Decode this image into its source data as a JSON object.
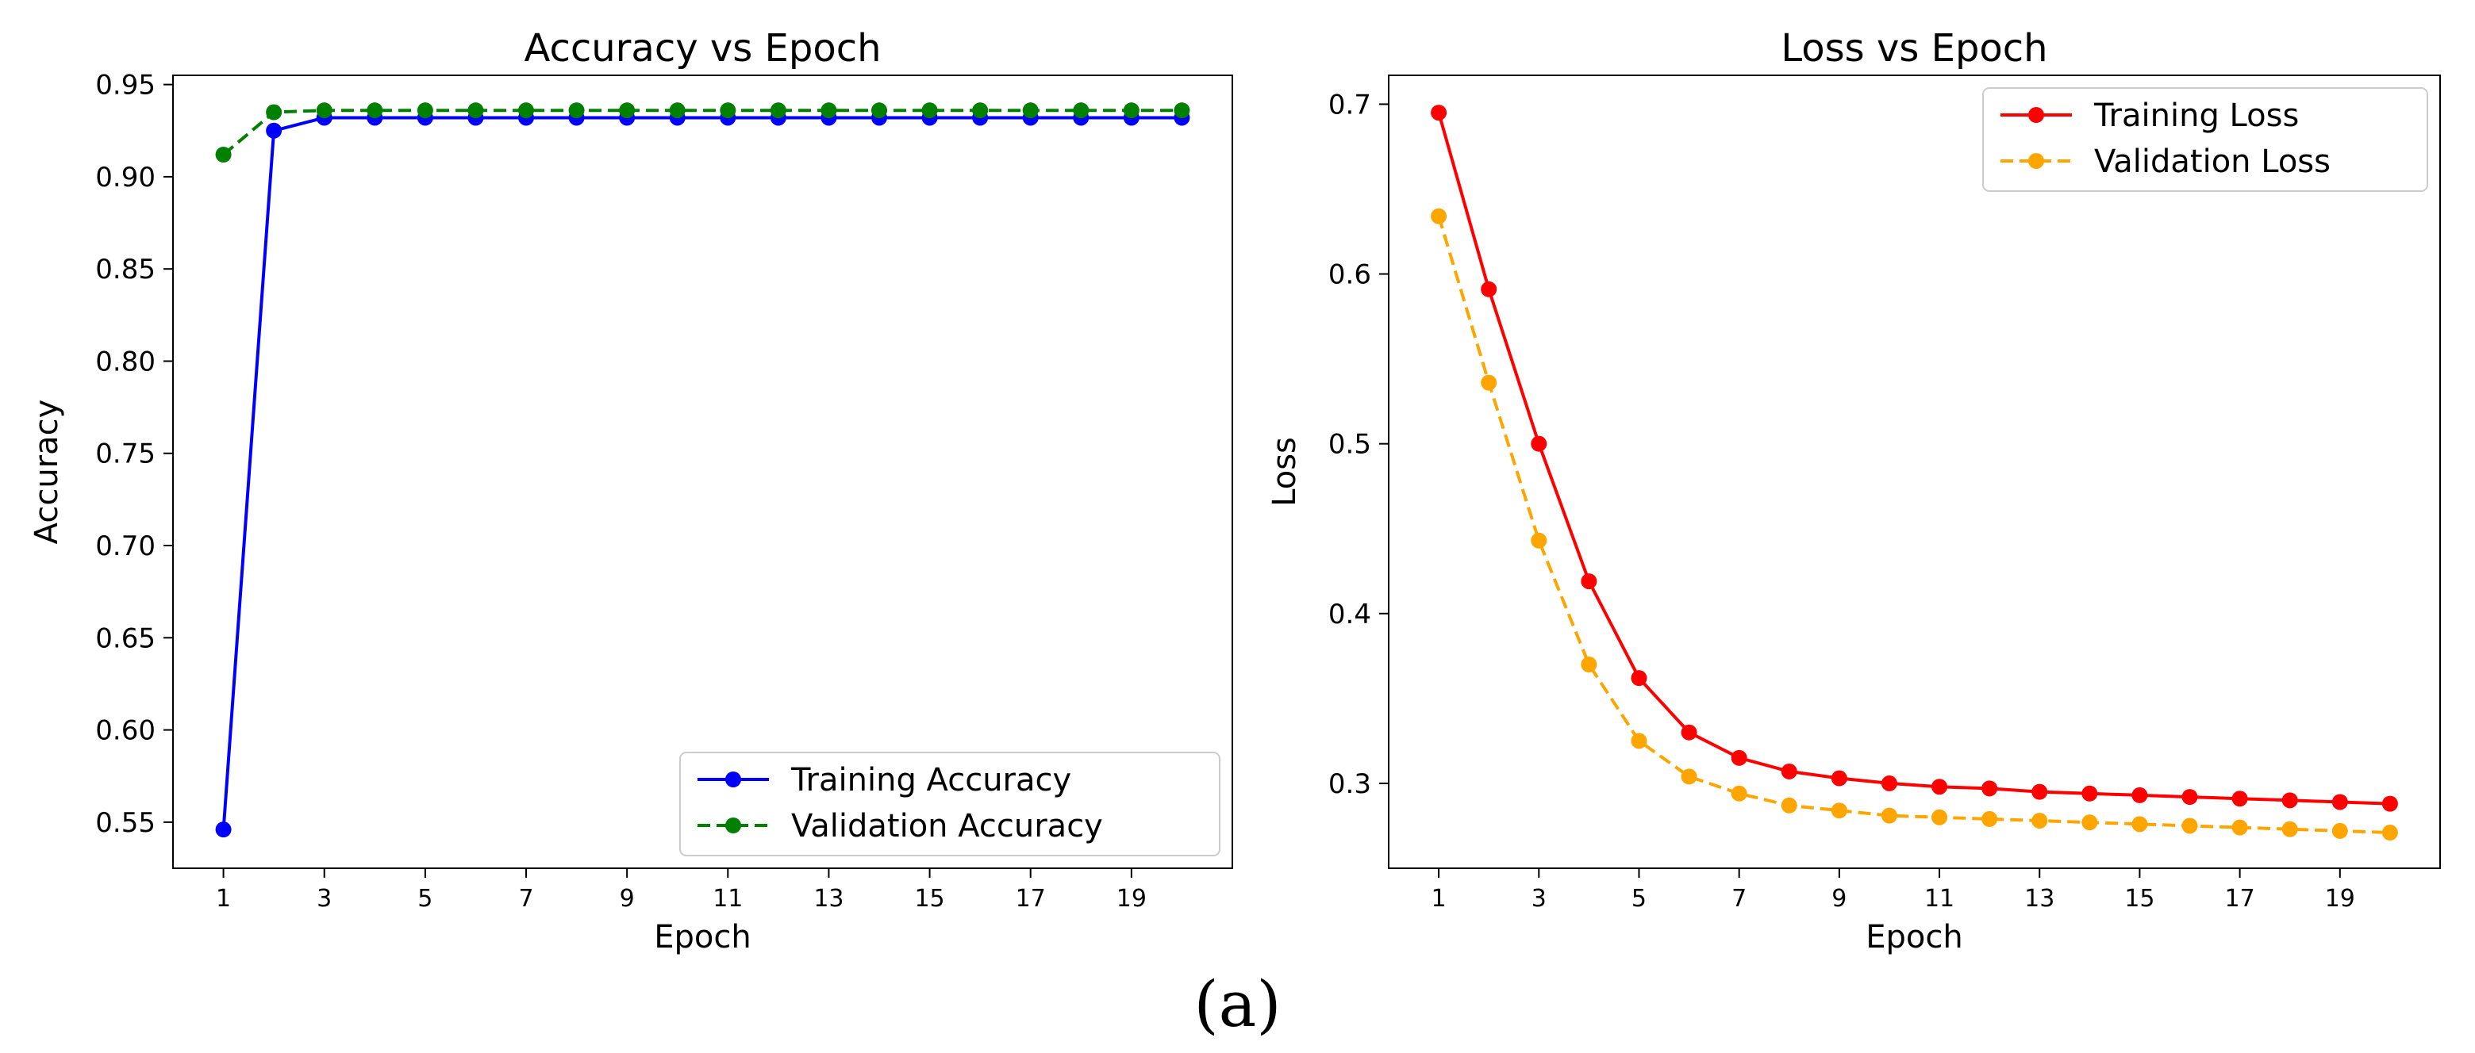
{
  "chart_data": [
    {
      "type": "line",
      "title": "Accuracy vs Epoch",
      "xlabel": "Epoch",
      "ylabel": "Accuracy",
      "xlim": [
        0.0,
        21.0
      ],
      "ylim": [
        0.525,
        0.955
      ],
      "xticks": [
        1,
        3,
        5,
        7,
        9,
        11,
        13,
        15,
        17,
        19
      ],
      "yticks": [
        0.55,
        0.6,
        0.65,
        0.7,
        0.75,
        0.8,
        0.85,
        0.9,
        0.95
      ],
      "ytick_labels": [
        "0.55",
        "0.60",
        "0.65",
        "0.70",
        "0.75",
        "0.80",
        "0.85",
        "0.90",
        "0.95"
      ],
      "grid": false,
      "legend_position": "lower-right",
      "x": [
        1,
        2,
        3,
        4,
        5,
        6,
        7,
        8,
        9,
        10,
        11,
        12,
        13,
        14,
        15,
        16,
        17,
        18,
        19,
        20
      ],
      "series": [
        {
          "name": "Training Accuracy",
          "color": "#0000ff",
          "linestyle": "solid",
          "values": [
            0.546,
            0.925,
            0.932,
            0.932,
            0.932,
            0.932,
            0.932,
            0.932,
            0.932,
            0.932,
            0.932,
            0.932,
            0.932,
            0.932,
            0.932,
            0.932,
            0.932,
            0.932,
            0.932,
            0.932
          ]
        },
        {
          "name": "Validation Accuracy",
          "color": "#008000",
          "linestyle": "dashed",
          "values": [
            0.912,
            0.935,
            0.936,
            0.936,
            0.936,
            0.936,
            0.936,
            0.936,
            0.936,
            0.936,
            0.936,
            0.936,
            0.936,
            0.936,
            0.936,
            0.936,
            0.936,
            0.936,
            0.936,
            0.936
          ]
        }
      ]
    },
    {
      "type": "line",
      "title": "Loss vs Epoch",
      "xlabel": "Epoch",
      "ylabel": "Loss",
      "xlim": [
        0.0,
        21.0
      ],
      "ylim": [
        0.25,
        0.717
      ],
      "xticks": [
        1,
        3,
        5,
        7,
        9,
        11,
        13,
        15,
        17,
        19
      ],
      "yticks": [
        0.3,
        0.4,
        0.5,
        0.6,
        0.7
      ],
      "ytick_labels": [
        "0.3",
        "0.4",
        "0.5",
        "0.6",
        "0.7"
      ],
      "grid": false,
      "legend_position": "top-right",
      "x": [
        1,
        2,
        3,
        4,
        5,
        6,
        7,
        8,
        9,
        10,
        11,
        12,
        13,
        14,
        15,
        16,
        17,
        18,
        19,
        20
      ],
      "series": [
        {
          "name": "Training Loss",
          "color": "#ff0000",
          "linestyle": "solid",
          "values": [
            0.695,
            0.591,
            0.5,
            0.419,
            0.362,
            0.33,
            0.315,
            0.307,
            0.303,
            0.3,
            0.298,
            0.297,
            0.295,
            0.294,
            0.293,
            0.292,
            0.291,
            0.29,
            0.289,
            0.288
          ]
        },
        {
          "name": "Validation Loss",
          "color": "#ffa500",
          "linestyle": "dashed",
          "values": [
            0.634,
            0.536,
            0.443,
            0.37,
            0.325,
            0.304,
            0.294,
            0.287,
            0.284,
            0.281,
            0.28,
            0.279,
            0.278,
            0.277,
            0.276,
            0.275,
            0.274,
            0.273,
            0.272,
            0.271
          ]
        }
      ]
    }
  ],
  "caption": "(a)"
}
